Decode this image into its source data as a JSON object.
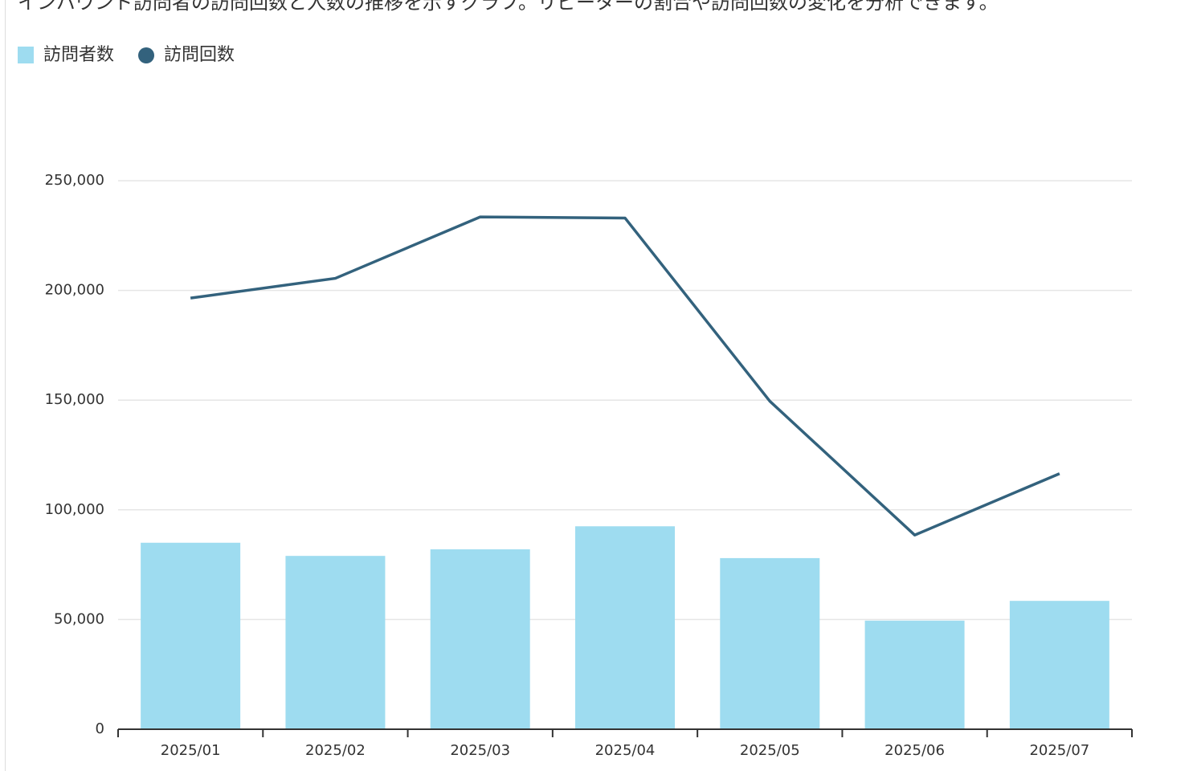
{
  "chart_data": {
    "type": "bar_line",
    "subtitle": "インバウンド訪問者の訪問回数と人数の推移を示すグラフ。リピーターの割合や訪問回数の変化を分析できます。",
    "categories": [
      "2025/01",
      "2025/02",
      "2025/03",
      "2025/04",
      "2025/05",
      "2025/06",
      "2025/07"
    ],
    "series": [
      {
        "name": "訪問者数",
        "type": "bar",
        "color": "#9edcf0",
        "values": [
          85000,
          79000,
          82000,
          92500,
          78000,
          49500,
          58500
        ]
      },
      {
        "name": "訪問回数",
        "type": "line",
        "color": "#33627d",
        "values": [
          196500,
          205500,
          233500,
          233000,
          149500,
          88500,
          116500
        ]
      }
    ],
    "ylim": [
      0,
      250000
    ],
    "yticks": [
      0,
      {
        "value": 50000,
        "label": "50,000"
      },
      {
        "value": 100000,
        "label": "100,000"
      },
      {
        "value": 150000,
        "label": "150,000"
      },
      {
        "value": 200000,
        "label": "200,000"
      },
      {
        "value": 250000,
        "label": "250,000"
      }
    ],
    "grid": true,
    "legend": "top-left"
  }
}
